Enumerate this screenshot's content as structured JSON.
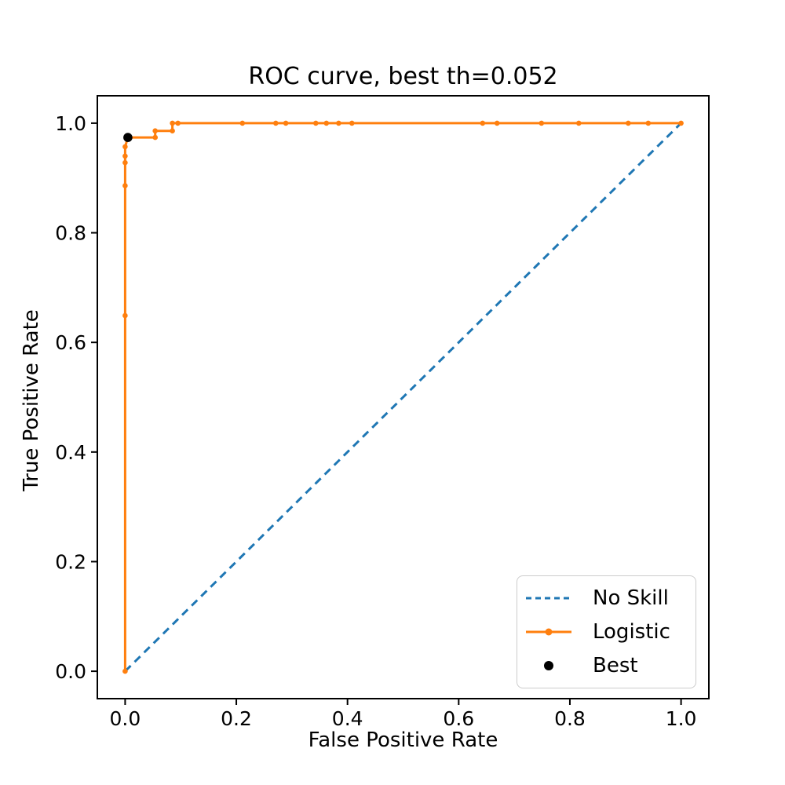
{
  "chart_data": {
    "type": "line",
    "title": "ROC curve, best th=0.052",
    "xlabel": "False Positive Rate",
    "ylabel": "True Positive Rate",
    "xlim": [
      -0.05,
      1.05
    ],
    "ylim": [
      -0.05,
      1.05
    ],
    "x_tick_labels": [
      "0.0",
      "0.2",
      "0.4",
      "0.6",
      "0.8",
      "1.0"
    ],
    "y_tick_labels": [
      "0.0",
      "0.2",
      "0.4",
      "0.6",
      "0.8",
      "1.0"
    ],
    "grid": false,
    "legend_position": "lower right",
    "best_threshold": 0.052,
    "best_point": [
      0.005,
      0.974
    ],
    "series": [
      {
        "name": "No Skill",
        "type": "line",
        "style": "dashed",
        "color": "#1f77b4",
        "marker": "none",
        "points": [
          [
            0.0,
            0.0
          ],
          [
            1.0,
            1.0
          ]
        ]
      },
      {
        "name": "Logistic",
        "type": "line",
        "style": "solid",
        "color": "#ff7f0e",
        "marker": "dot",
        "points": [
          [
            0.0,
            0.0
          ],
          [
            0.0,
            0.649
          ],
          [
            0.0,
            0.886
          ],
          [
            0.0,
            0.928
          ],
          [
            0.0,
            0.94
          ],
          [
            0.0,
            0.957
          ],
          [
            0.005,
            0.974
          ],
          [
            0.054,
            0.974
          ],
          [
            0.054,
            0.986
          ],
          [
            0.085,
            0.986
          ],
          [
            0.085,
            1.0
          ],
          [
            0.095,
            1.0
          ],
          [
            0.211,
            1.0
          ],
          [
            0.271,
            1.0
          ],
          [
            0.289,
            1.0
          ],
          [
            0.343,
            1.0
          ],
          [
            0.362,
            1.0
          ],
          [
            0.384,
            1.0
          ],
          [
            0.408,
            1.0
          ],
          [
            0.643,
            1.0
          ],
          [
            0.669,
            1.0
          ],
          [
            0.749,
            1.0
          ],
          [
            0.816,
            1.0
          ],
          [
            0.905,
            1.0
          ],
          [
            0.941,
            1.0
          ],
          [
            1.0,
            1.0
          ]
        ]
      },
      {
        "name": "Best",
        "type": "scatter",
        "style": "none",
        "color": "#000000",
        "marker": "dot-large",
        "points": [
          [
            0.005,
            0.974
          ]
        ]
      }
    ],
    "legend": [
      {
        "label": "No Skill",
        "color": "#1f77b4",
        "sample": "dashed-line"
      },
      {
        "label": "Logistic",
        "color": "#ff7f0e",
        "sample": "line-with-dot"
      },
      {
        "label": "Best",
        "color": "#000000",
        "sample": "dot"
      }
    ]
  }
}
